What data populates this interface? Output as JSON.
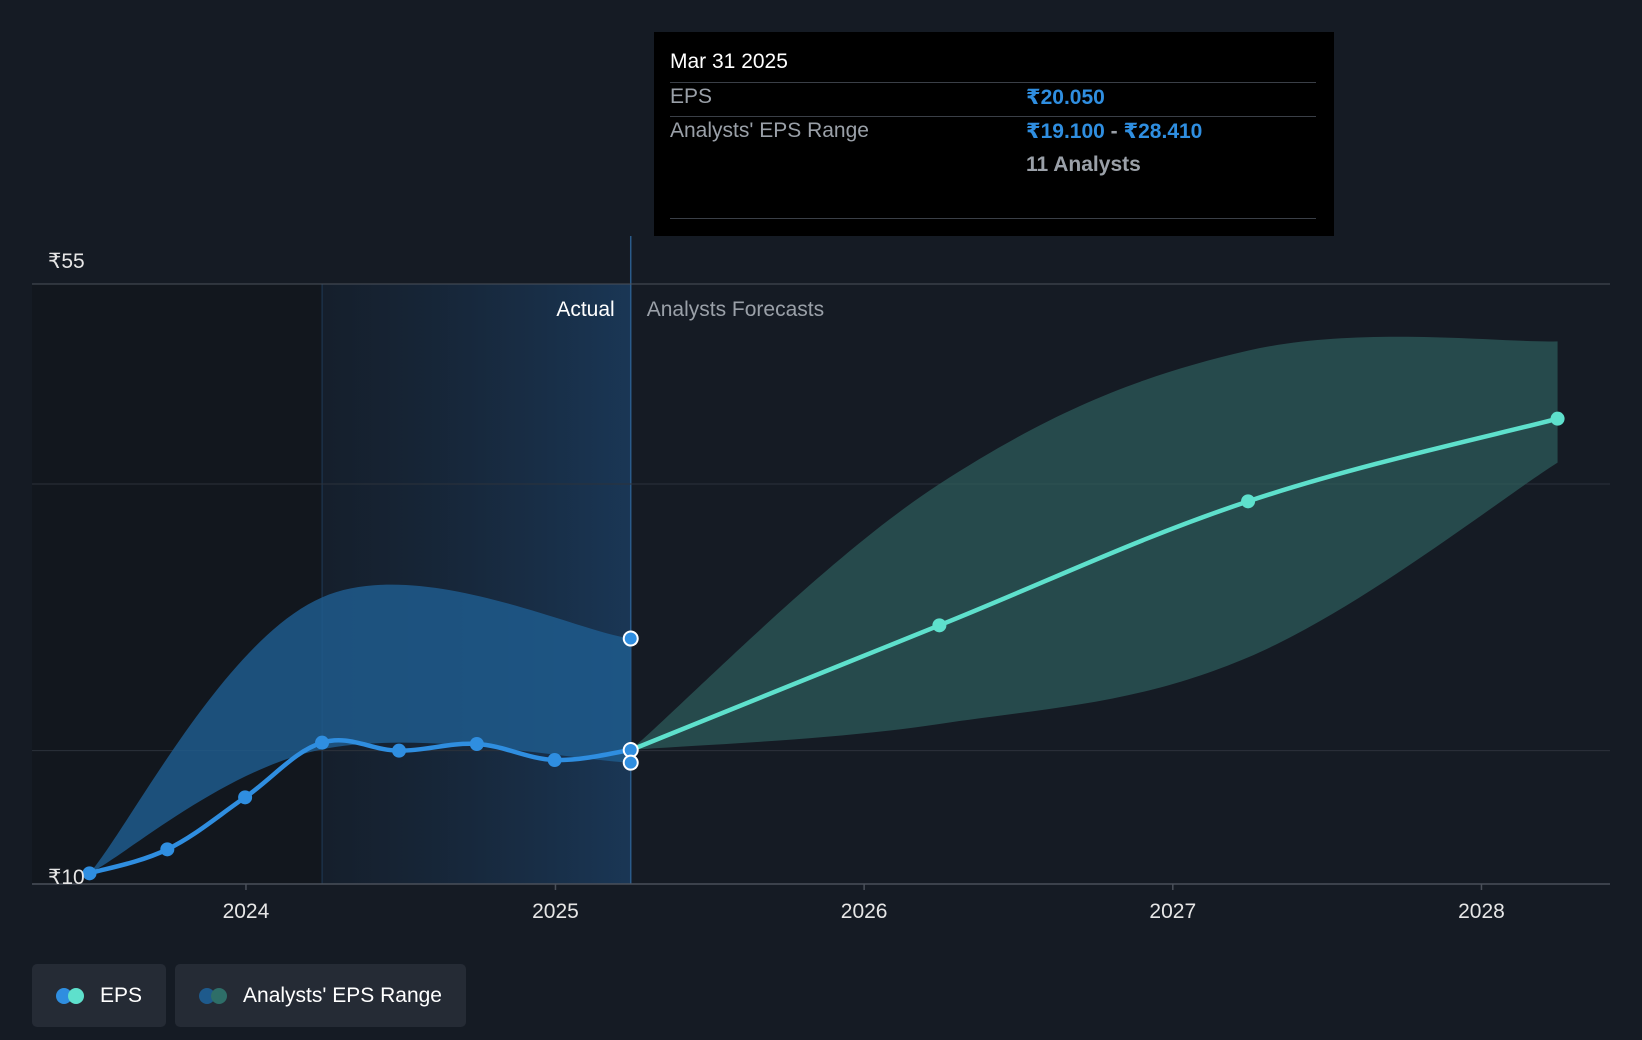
{
  "chart_data": {
    "type": "line",
    "y_axis": {
      "min": 10,
      "max": 55,
      "tick_labels": [
        "₹55",
        "₹10"
      ],
      "grid_values": [
        55,
        40,
        20
      ]
    },
    "x_axis": {
      "tick_labels": [
        "2024",
        "2025",
        "2026",
        "2027",
        "2028"
      ]
    },
    "sections": {
      "actual_label": "Actual",
      "forecast_label": "Analysts Forecasts",
      "divider_date": "2025-03-31"
    },
    "series": [
      {
        "name": "EPS",
        "color": "#2f8ee0",
        "points": [
          {
            "x": "2023-06-30",
            "y": 10.8
          },
          {
            "x": "2023-09-30",
            "y": 12.6
          },
          {
            "x": "2023-12-31",
            "y": 16.5
          },
          {
            "x": "2024-03-31",
            "y": 20.6
          },
          {
            "x": "2024-06-30",
            "y": 20.0
          },
          {
            "x": "2024-09-30",
            "y": 20.5
          },
          {
            "x": "2024-12-31",
            "y": 19.3
          },
          {
            "x": "2025-03-31",
            "y": 20.05
          }
        ]
      },
      {
        "name": "EPS forecast",
        "color": "#5ee0cc",
        "points": [
          {
            "x": "2025-03-31",
            "y": 20.05
          },
          {
            "x": "2026-03-31",
            "y": 29.4
          },
          {
            "x": "2027-03-31",
            "y": 38.7
          },
          {
            "x": "2028-03-31",
            "y": 44.9
          }
        ]
      }
    ],
    "ranges": [
      {
        "name": "Analysts' EPS Range",
        "color": "#1e5a8c",
        "points": [
          {
            "x": "2023-06-30",
            "low": 10.8,
            "high": 10.8
          },
          {
            "x": "2024-03-31",
            "low": 20.1,
            "high": 31.5
          },
          {
            "x": "2025-03-31",
            "low": 19.1,
            "high": 28.41
          }
        ]
      },
      {
        "name": "Analysts' EPS Range",
        "color": "#2e5d5c",
        "points": [
          {
            "x": "2025-03-31",
            "low": 20.05,
            "high": 20.05
          },
          {
            "x": "2026-03-31",
            "low": 22.0,
            "high": 40.0
          },
          {
            "x": "2027-03-31",
            "low": 27.0,
            "high": 50.0
          },
          {
            "x": "2028-03-31",
            "low": 41.6,
            "high": 50.7
          }
        ]
      }
    ]
  },
  "tooltip": {
    "date": "Mar 31 2025",
    "eps_label": "EPS",
    "eps_value": "₹20.050",
    "range_label": "Analysts' EPS Range",
    "range_low": "₹19.100",
    "range_sep": " - ",
    "range_high": "₹28.410",
    "analysts": "11 Analysts"
  },
  "legend": {
    "items": [
      {
        "label": "EPS",
        "colors": [
          "#2f8ee0",
          "#5ee0cc"
        ]
      },
      {
        "label": "Analysts' EPS Range",
        "colors": [
          "#1e5a8c",
          "#2e6e68"
        ]
      }
    ]
  }
}
